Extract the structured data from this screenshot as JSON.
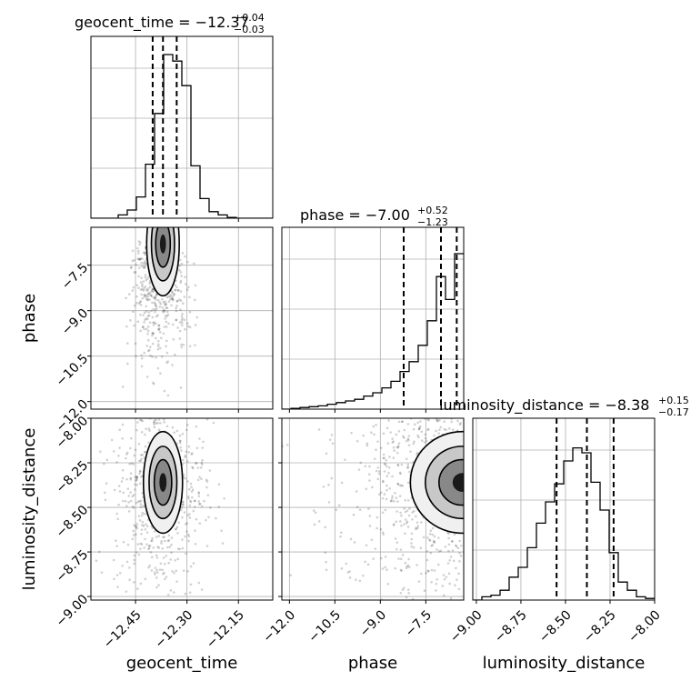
{
  "chart_data": {
    "type": "corner",
    "parameters": [
      "geocent_time",
      "phase",
      "luminosity_distance"
    ],
    "titles": [
      {
        "param": "geocent_time",
        "label": "geocent_time",
        "median": "−12.37",
        "plus": "+0.04",
        "minus": "−0.03"
      },
      {
        "param": "phase",
        "label": "phase",
        "median": "−7.00",
        "plus": "+0.52",
        "minus": "−1.23"
      },
      {
        "param": "luminosity_distance",
        "label": "luminosity_distance",
        "median": "−8.38",
        "plus": "+0.15",
        "minus": "−0.17"
      }
    ],
    "axis_labels": {
      "x": [
        "geocent_time",
        "phase",
        "luminosity_distance"
      ],
      "y": [
        "phase",
        "luminosity_distance"
      ]
    },
    "ticks": {
      "geocent_time": {
        "values": [
          -12.45,
          -12.3,
          -12.15
        ],
        "labels": [
          "−12.45",
          "−12.30",
          "−12.15"
        ]
      },
      "phase": {
        "values": [
          -12.0,
          -10.5,
          -9.0,
          -7.5
        ],
        "labels": [
          "−12.0",
          "−10.5",
          "−9.0",
          "−7.5"
        ]
      },
      "luminosity_distance": {
        "values": [
          -9.0,
          -8.75,
          -8.5,
          -8.25,
          -8.0
        ],
        "labels": [
          "−9.00",
          "−8.75",
          "−8.50",
          "−8.25",
          "−8.00"
        ]
      }
    },
    "ranges": {
      "geocent_time": [
        -12.58,
        -12.05
      ],
      "phase": [
        -12.25,
        -6.25
      ],
      "luminosity_distance": [
        -9.02,
        -8.0
      ]
    },
    "grid": true,
    "histograms": {
      "geocent_time": {
        "edges_range": [
          -12.58,
          -12.05
        ],
        "counts": [
          0,
          0,
          0,
          0.02,
          0.05,
          0.13,
          0.33,
          0.64,
          1.0,
          0.96,
          0.81,
          0.32,
          0.12,
          0.04,
          0.02,
          0.005,
          0,
          0,
          0,
          0
        ],
        "quantiles": [
          -12.4,
          -12.37,
          -12.33
        ]
      },
      "phase": {
        "edges_range": [
          -12.25,
          -6.25
        ],
        "counts": [
          0,
          0.005,
          0.01,
          0.015,
          0.02,
          0.03,
          0.04,
          0.05,
          0.06,
          0.08,
          0.1,
          0.13,
          0.17,
          0.23,
          0.29,
          0.39,
          0.54,
          0.81,
          0.67,
          0.95
        ],
        "quantiles": [
          -8.23,
          -7.0,
          -6.48
        ]
      },
      "luminosity_distance": {
        "edges_range": [
          -9.02,
          -8.0
        ],
        "counts": [
          0,
          0.02,
          0.03,
          0.06,
          0.14,
          0.2,
          0.32,
          0.47,
          0.6,
          0.71,
          0.85,
          0.93,
          0.9,
          0.72,
          0.55,
          0.29,
          0.11,
          0.06,
          0.02,
          0.01
        ],
        "quantiles": [
          -8.55,
          -8.38,
          -8.23
        ]
      }
    },
    "scatter_2d": {
      "phase_vs_geocent_time": {
        "center": [
          -12.38,
          -6.7
        ],
        "spread": [
          0.025,
          0.9
        ],
        "truth_peak": [
          -12.37,
          -6.8
        ]
      },
      "luminosity_distance_vs_geocent_time": {
        "center": [
          -12.38,
          -8.36
        ],
        "spread": [
          0.03,
          0.15
        ],
        "truth_peak": [
          -12.37,
          -8.36
        ]
      },
      "luminosity_distance_vs_phase": {
        "center": [
          -6.6,
          -8.36
        ],
        "spread": [
          0.9,
          0.15
        ],
        "truth_peak": [
          -6.3,
          -8.36
        ]
      }
    }
  }
}
